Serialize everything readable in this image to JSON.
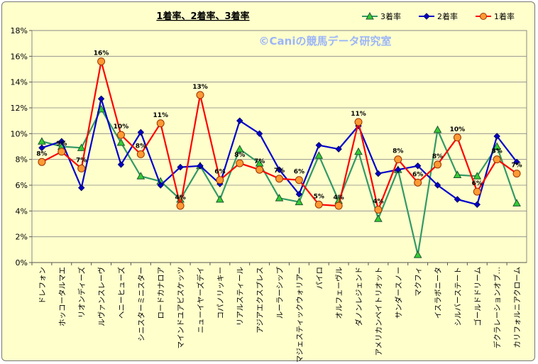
{
  "chart_data": {
    "type": "line",
    "title": "1着率、2着率、3着率",
    "watermark": "©Caniの競馬データ研究室",
    "xlabel": "",
    "ylabel": "",
    "ylim": [
      0,
      18
    ],
    "yticks": [
      "0%",
      "2%",
      "4%",
      "6%",
      "8%",
      "10%",
      "12%",
      "14%",
      "16%",
      "18%"
    ],
    "grid": true,
    "legend_position": "top-right",
    "categories": [
      "ドレフォン",
      "ホッコータルマエ",
      "リオンディーズ",
      "ルヴァンスレーヴ",
      "ヘニーヒューズ",
      "シニスターミニスター",
      "ロードカナロア",
      "マインドユアビスケッツ",
      "ニューイヤーズデイ",
      "コパノリッキー",
      "リアルスティール",
      "アジアエクスプレス",
      "ルーラーシップ",
      "マジェスティックウォリアー",
      "パイロ",
      "オルフェーヴル",
      "ダノンレジェンド",
      "アメリカンペイトリオット",
      "サンダースノー",
      "マクフィ",
      "イスラボニータ",
      "シルバーステート",
      "ゴールドドリーム",
      "デクラレーションオブ…",
      "カリフォルニアクローム"
    ],
    "series": [
      {
        "name": "3着率",
        "color": "#339966",
        "marker": "triangle",
        "markerFill": "#33cc33",
        "values": [
          9.4,
          9.0,
          8.9,
          11.9,
          9.3,
          6.7,
          6.3,
          4.9,
          7.5,
          4.9,
          8.8,
          7.7,
          5.0,
          4.7,
          8.3,
          4.8,
          8.6,
          3.4,
          7.2,
          0.6,
          10.3,
          6.8,
          6.7,
          9.0,
          4.6
        ]
      },
      {
        "name": "2着率",
        "color": "#0000cc",
        "marker": "diamond",
        "markerFill": "#0000cc",
        "values": [
          8.9,
          9.4,
          5.8,
          12.7,
          7.6,
          10.1,
          6.0,
          7.4,
          7.5,
          6.1,
          11.0,
          10.0,
          7.2,
          5.3,
          9.1,
          8.8,
          10.6,
          6.9,
          7.2,
          7.5,
          6.0,
          4.9,
          4.5,
          9.8,
          7.8
        ]
      },
      {
        "name": "1着率",
        "color": "#ff0000",
        "marker": "circle",
        "markerFill": "#ff9933",
        "values": [
          7.8,
          8.6,
          7.3,
          15.6,
          9.9,
          8.4,
          10.8,
          4.4,
          13.0,
          6.4,
          7.7,
          7.2,
          6.5,
          6.4,
          4.5,
          4.4,
          10.9,
          4.1,
          8.0,
          6.2,
          7.6,
          9.7,
          5.5,
          8.0,
          6.9
        ]
      }
    ],
    "data_labels": {
      "series": "1着率",
      "labels": [
        "8%",
        "9%",
        "7%",
        "16%",
        "10%",
        "8%",
        "11%",
        "4%",
        "13%",
        "6%",
        "8%",
        "7%",
        "7%",
        "6%",
        "5%",
        "4%",
        "11%",
        "4%",
        "8%",
        "6%",
        "8%",
        "10%",
        "6%",
        "8%",
        "7%"
      ]
    }
  }
}
